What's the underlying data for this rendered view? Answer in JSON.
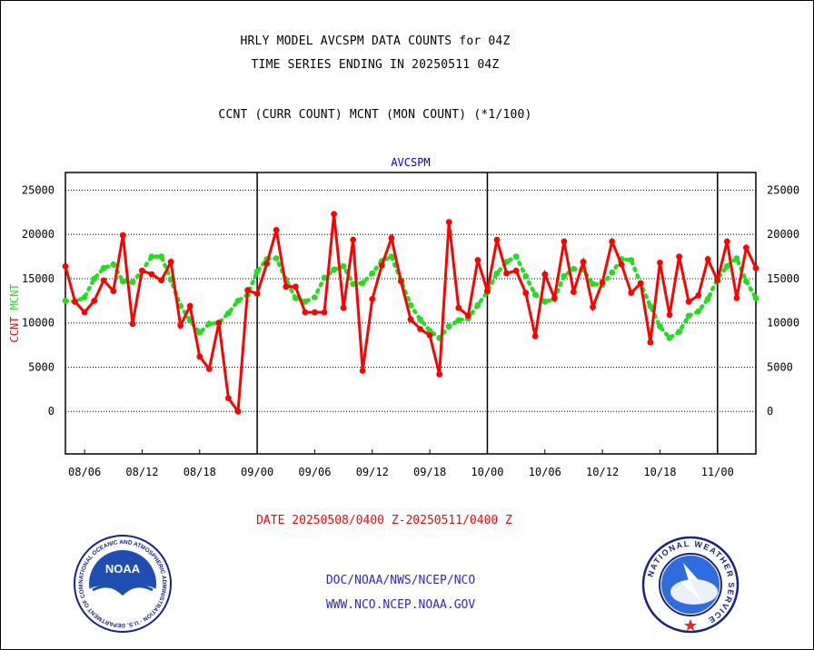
{
  "titles": {
    "line1": "HRLY MODEL AVCSPM DATA COUNTS for 04Z",
    "line2": "TIME SERIES ENDING IN 20250511 04Z",
    "line3": "CCNT (CURR COUNT) MCNT (MON COUNT) (*1/100)"
  },
  "footer": {
    "date_range": "DATE 20250508/0400 Z-20250511/0400 Z",
    "org_path": "DOC/NOAA/NWS/NCEP/NCO",
    "url": "WWW.NCO.NCEP.NOAA.GOV"
  },
  "logos": {
    "noaa": {
      "icon": "noaa-logo-icon",
      "text": "NOAA",
      "ring_text": "NATIONAL OCEANIC AND ATMOSPHERIC ADMINISTRATION · U.S. DEPARTMENT OF COMMERCE"
    },
    "nws": {
      "icon": "nws-logo-icon",
      "ring_text": "NATIONAL WEATHER SERVICE"
    }
  },
  "colors": {
    "ccnt": "#ff0000",
    "mcnt": "#22dd22",
    "plot_title": "#0000cc",
    "date_label": "#ff0000",
    "footer_text": "#2a2acc"
  },
  "chart_data": {
    "type": "line",
    "title": "AVCSPM",
    "ylabel_parts": [
      {
        "text": "CCNT",
        "color": "#ff0000"
      },
      {
        "text": "MCNT",
        "color": "#22dd22"
      }
    ],
    "ylim": [
      -4800,
      27000
    ],
    "yticks": [
      0,
      5000,
      10000,
      15000,
      20000,
      25000
    ],
    "xlim": [
      0,
      72
    ],
    "xticks": [
      {
        "x": 2,
        "label": "08/06"
      },
      {
        "x": 8,
        "label": "08/12"
      },
      {
        "x": 14,
        "label": "08/18"
      },
      {
        "x": 20,
        "label": "09/00"
      },
      {
        "x": 26,
        "label": "09/06"
      },
      {
        "x": 32,
        "label": "09/12"
      },
      {
        "x": 38,
        "label": "09/18"
      },
      {
        "x": 44,
        "label": "10/00"
      },
      {
        "x": 50,
        "label": "10/06"
      },
      {
        "x": 56,
        "label": "10/12"
      },
      {
        "x": 62,
        "label": "10/18"
      },
      {
        "x": 68,
        "label": "11/00"
      }
    ],
    "day_boundaries": [
      20,
      44,
      68
    ],
    "grid": "horizontal dotted",
    "series": [
      {
        "name": "CCNT",
        "color": "#ff0000",
        "style": "solid",
        "values": [
          16400,
          12400,
          11200,
          12500,
          14800,
          13600,
          19900,
          9900,
          15900,
          15500,
          14800,
          16900,
          9700,
          11900,
          6200,
          4800,
          10000,
          1500,
          0,
          13700,
          13300,
          16700,
          20500,
          14100,
          14100,
          11200,
          11200,
          11200,
          22300,
          11700,
          19400,
          4600,
          12700,
          16500,
          19600,
          14700,
          10400,
          9300,
          8600,
          4200,
          21400,
          11700,
          10800,
          17100,
          13600,
          19400,
          15600,
          15900,
          13400,
          8500,
          15500,
          12800,
          19200,
          13500,
          16900,
          11800,
          14600,
          19200,
          16600,
          13400,
          14500,
          7800,
          16800,
          10900,
          17500,
          12400,
          13100,
          17200,
          14800,
          19200,
          12800,
          18500,
          16200
        ]
      },
      {
        "name": "MCNT",
        "color": "#22dd22",
        "style": "dotted",
        "values": [
          12500,
          12400,
          12900,
          15000,
          16200,
          16600,
          14700,
          14600,
          15900,
          17500,
          17500,
          14900,
          11900,
          10300,
          8900,
          9900,
          10000,
          11100,
          12500,
          13200,
          15800,
          17200,
          17300,
          14900,
          12800,
          12400,
          12900,
          15100,
          16000,
          16400,
          14400,
          14500,
          15600,
          17000,
          17500,
          14800,
          12000,
          10400,
          9100,
          8300,
          9600,
          10300,
          10500,
          12000,
          13500,
          15600,
          16900,
          17500,
          15300,
          13200,
          12400,
          12700,
          15300,
          16100,
          16000,
          14400,
          14300,
          15700,
          17200,
          17100,
          14400,
          11900,
          9600,
          8300,
          9000,
          10800,
          11300,
          12700,
          15000,
          16400,
          17300,
          14700,
          12800
        ]
      }
    ]
  }
}
